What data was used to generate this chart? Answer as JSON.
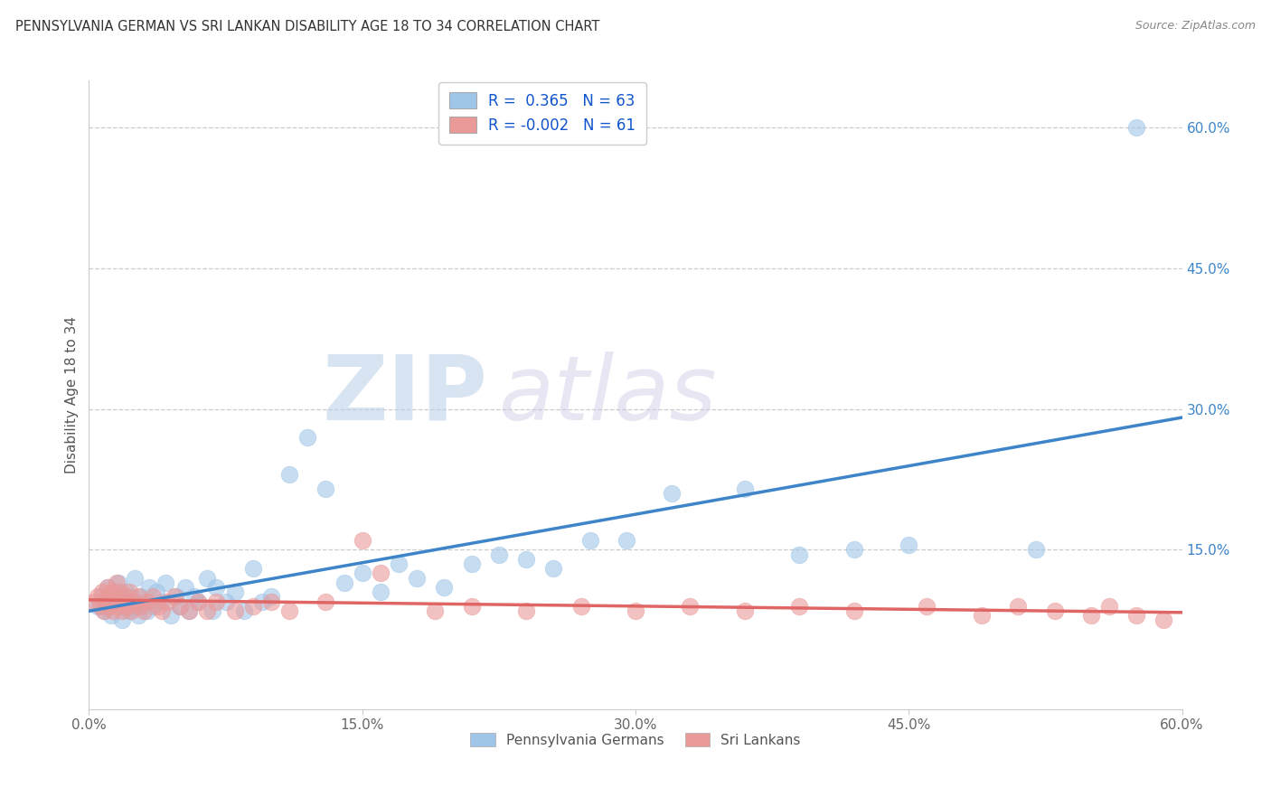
{
  "title": "PENNSYLVANIA GERMAN VS SRI LANKAN DISABILITY AGE 18 TO 34 CORRELATION CHART",
  "source": "Source: ZipAtlas.com",
  "ylabel": "Disability Age 18 to 34",
  "xlim": [
    0.0,
    0.6
  ],
  "ylim": [
    -0.02,
    0.65
  ],
  "R_blue": 0.365,
  "N_blue": 63,
  "R_pink": -0.002,
  "N_pink": 61,
  "blue_color": "#9fc5e8",
  "pink_color": "#ea9999",
  "blue_line_color": "#3d85c8",
  "pink_line_color": "#e06666",
  "background_color": "#ffffff",
  "watermark_zip": "ZIP",
  "watermark_atlas": "atlas",
  "blue_points_x": [
    0.005,
    0.007,
    0.008,
    0.01,
    0.01,
    0.012,
    0.013,
    0.015,
    0.016,
    0.018,
    0.02,
    0.02,
    0.022,
    0.023,
    0.025,
    0.025,
    0.027,
    0.028,
    0.03,
    0.032,
    0.033,
    0.035,
    0.037,
    0.04,
    0.042,
    0.045,
    0.048,
    0.05,
    0.053,
    0.055,
    0.058,
    0.06,
    0.065,
    0.068,
    0.07,
    0.075,
    0.08,
    0.085,
    0.09,
    0.095,
    0.1,
    0.11,
    0.12,
    0.13,
    0.14,
    0.15,
    0.16,
    0.17,
    0.18,
    0.195,
    0.21,
    0.225,
    0.24,
    0.255,
    0.275,
    0.295,
    0.32,
    0.36,
    0.39,
    0.42,
    0.45,
    0.52,
    0.575
  ],
  "blue_points_y": [
    0.09,
    0.1,
    0.085,
    0.095,
    0.11,
    0.08,
    0.095,
    0.105,
    0.115,
    0.075,
    0.095,
    0.105,
    0.085,
    0.1,
    0.09,
    0.12,
    0.08,
    0.1,
    0.095,
    0.085,
    0.11,
    0.09,
    0.105,
    0.095,
    0.115,
    0.08,
    0.1,
    0.09,
    0.11,
    0.085,
    0.1,
    0.095,
    0.12,
    0.085,
    0.11,
    0.095,
    0.105,
    0.085,
    0.13,
    0.095,
    0.1,
    0.23,
    0.27,
    0.215,
    0.115,
    0.125,
    0.105,
    0.135,
    0.12,
    0.11,
    0.135,
    0.145,
    0.14,
    0.13,
    0.16,
    0.16,
    0.21,
    0.215,
    0.145,
    0.15,
    0.155,
    0.15,
    0.6
  ],
  "pink_points_x": [
    0.003,
    0.005,
    0.006,
    0.007,
    0.008,
    0.009,
    0.01,
    0.01,
    0.011,
    0.012,
    0.013,
    0.014,
    0.015,
    0.015,
    0.016,
    0.017,
    0.018,
    0.019,
    0.02,
    0.021,
    0.022,
    0.023,
    0.025,
    0.027,
    0.028,
    0.03,
    0.032,
    0.035,
    0.038,
    0.04,
    0.043,
    0.047,
    0.05,
    0.055,
    0.06,
    0.065,
    0.07,
    0.08,
    0.09,
    0.1,
    0.11,
    0.13,
    0.15,
    0.16,
    0.19,
    0.21,
    0.24,
    0.27,
    0.3,
    0.33,
    0.36,
    0.39,
    0.42,
    0.46,
    0.49,
    0.51,
    0.53,
    0.55,
    0.56,
    0.575,
    0.59
  ],
  "pink_points_y": [
    0.095,
    0.1,
    0.09,
    0.105,
    0.085,
    0.095,
    0.1,
    0.11,
    0.09,
    0.105,
    0.085,
    0.095,
    0.1,
    0.115,
    0.09,
    0.105,
    0.085,
    0.095,
    0.1,
    0.09,
    0.105,
    0.085,
    0.095,
    0.1,
    0.09,
    0.085,
    0.095,
    0.1,
    0.09,
    0.085,
    0.095,
    0.1,
    0.09,
    0.085,
    0.095,
    0.085,
    0.095,
    0.085,
    0.09,
    0.095,
    0.085,
    0.095,
    0.16,
    0.125,
    0.085,
    0.09,
    0.085,
    0.09,
    0.085,
    0.09,
    0.085,
    0.09,
    0.085,
    0.09,
    0.08,
    0.09,
    0.085,
    0.08,
    0.09,
    0.08,
    0.075
  ]
}
